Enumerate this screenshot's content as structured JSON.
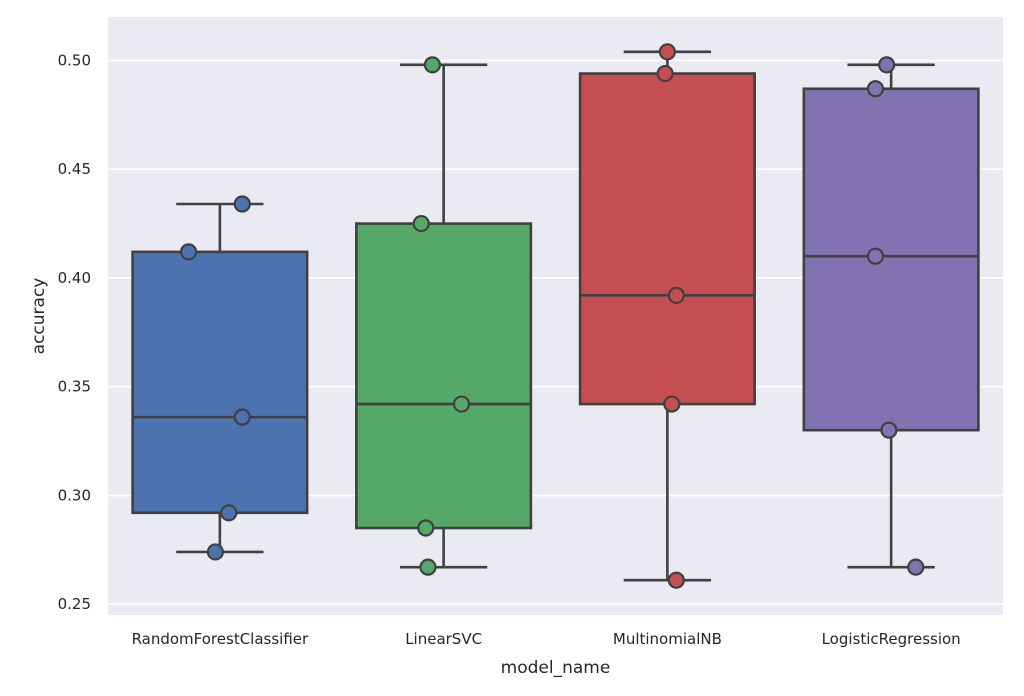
{
  "chart_data": {
    "type": "box",
    "xlabel": "model_name",
    "ylabel": "accuracy",
    "ylim": [
      0.245,
      0.52
    ],
    "yticks": [
      "0.25",
      "0.30",
      "0.35",
      "0.40",
      "0.45",
      "0.50"
    ],
    "grid": true,
    "categories": [
      "RandomForestClassifier",
      "LinearSVC",
      "MultinomialNB",
      "LogisticRegression"
    ],
    "series": [
      {
        "category": "RandomForestClassifier",
        "color": "#4c72b0",
        "whisker_low": 0.274,
        "q1": 0.292,
        "median": 0.336,
        "q3": 0.412,
        "whisker_high": 0.434,
        "points": [
          0.434,
          0.412,
          0.336,
          0.292,
          0.274
        ]
      },
      {
        "category": "LinearSVC",
        "color": "#55a868",
        "whisker_low": 0.267,
        "q1": 0.285,
        "median": 0.342,
        "q3": 0.425,
        "whisker_high": 0.498,
        "points": [
          0.498,
          0.425,
          0.342,
          0.285,
          0.267
        ]
      },
      {
        "category": "MultinomialNB",
        "color": "#c44e52",
        "whisker_low": 0.261,
        "q1": 0.342,
        "median": 0.392,
        "q3": 0.494,
        "whisker_high": 0.504,
        "points": [
          0.504,
          0.494,
          0.392,
          0.342,
          0.261
        ]
      },
      {
        "category": "LogisticRegression",
        "color": "#8172b2",
        "whisker_low": 0.267,
        "q1": 0.33,
        "median": 0.41,
        "q3": 0.487,
        "whisker_high": 0.498,
        "points": [
          0.498,
          0.487,
          0.41,
          0.33,
          0.267
        ]
      }
    ]
  }
}
